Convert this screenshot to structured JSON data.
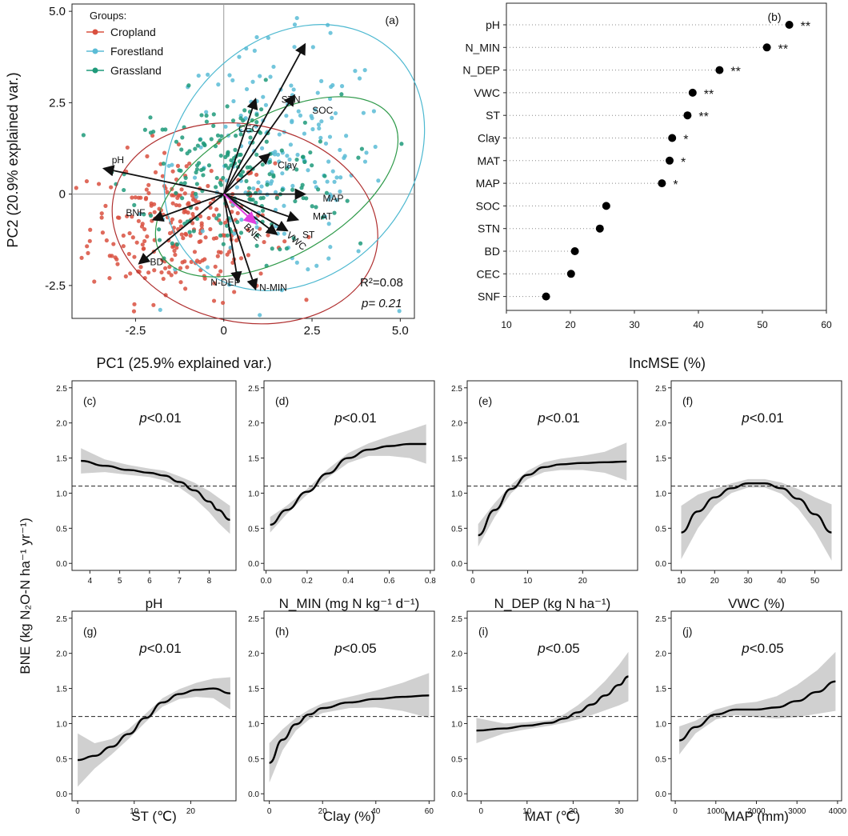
{
  "chart_data": [
    {
      "panel_label": "(a)",
      "type": "scatter",
      "xlabel": "PC1 (25.9% explained var.)",
      "ylabel": "PC2 (20.9% explained var.)",
      "xlim": [
        -4.3,
        5.4
      ],
      "ylim": [
        -3.4,
        5.2
      ],
      "xticks": [
        -2.5,
        0,
        2.5,
        5.0
      ],
      "xtick_labels": [
        "-2.5",
        "0",
        "2.5",
        "5.0"
      ],
      "yticks": [
        -2.5,
        0,
        2.5,
        5.0
      ],
      "ytick_labels": [
        "-2.5",
        "0",
        "2.5",
        "5.0"
      ],
      "legend": {
        "title": "Groups:",
        "position": "top-left",
        "items": [
          {
            "name": "Cropland",
            "color": "#d9503f"
          },
          {
            "name": "Forestland",
            "color": "#5bbcd6"
          },
          {
            "name": "Grassland",
            "color": "#1e9a7a"
          }
        ]
      },
      "series_clouds": [
        {
          "name": "Cropland",
          "color": "#d9503f",
          "center": [
            -1.2,
            -0.9
          ],
          "spread": [
            1.3,
            1.0
          ],
          "count": 260
        },
        {
          "name": "Forestland",
          "color": "#5bbcd6",
          "center": [
            1.6,
            0.9
          ],
          "spread": [
            1.5,
            1.6
          ],
          "count": 190
        },
        {
          "name": "Grassland",
          "color": "#1e9a7a",
          "center": [
            0.3,
            0.5
          ],
          "spread": [
            1.5,
            1.1
          ],
          "count": 200
        }
      ],
      "ellipses": [
        {
          "name": "Cropland",
          "color": "#b03030",
          "cx": 0.6,
          "cy": -0.8,
          "rx": 3.8,
          "ry": 2.7,
          "angle": 12
        },
        {
          "name": "Forestland",
          "color": "#4cb8d0",
          "cx": 2.0,
          "cy": 1.0,
          "rx": 4.1,
          "ry": 3.2,
          "angle": -48
        },
        {
          "name": "Grassland",
          "color": "#2f9a4a",
          "cx": 1.5,
          "cy": 0.2,
          "rx": 3.8,
          "ry": 1.9,
          "angle": -30
        }
      ],
      "loadings": [
        {
          "name": "STN",
          "x": 2.3,
          "y": 4.1,
          "lx": 1.9,
          "ly": 2.5
        },
        {
          "name": "SOC",
          "x": 2.0,
          "y": 2.7,
          "lx": 2.8,
          "ly": 2.2
        },
        {
          "name": "CEC",
          "x": 0.9,
          "y": 2.6,
          "lx": 0.7,
          "ly": 1.7
        },
        {
          "name": "Clay",
          "x": 1.3,
          "y": 1.1,
          "lx": 1.8,
          "ly": 0.7
        },
        {
          "name": "pH",
          "x": -3.4,
          "y": 0.7,
          "lx": -3.0,
          "ly": 0.85
        },
        {
          "name": "BNF",
          "x": -2.0,
          "y": -0.7,
          "lx": -2.5,
          "ly": -0.6
        },
        {
          "name": "BD",
          "x": -2.4,
          "y": -1.9,
          "lx": -1.9,
          "ly": -1.95
        },
        {
          "name": "N-DEP",
          "x": 0.4,
          "y": -2.4,
          "lx": 0.05,
          "ly": -2.5
        },
        {
          "name": "N-MIN",
          "x": 0.9,
          "y": -2.6,
          "lx": 1.4,
          "ly": -2.65
        },
        {
          "name": "MAP",
          "x": 2.3,
          "y": 0.0,
          "lx": 3.1,
          "ly": -0.2
        },
        {
          "name": "MAT",
          "x": 2.1,
          "y": -0.7,
          "lx": 2.8,
          "ly": -0.7
        },
        {
          "name": "ST",
          "x": 1.8,
          "y": -1.0,
          "lx": 2.4,
          "ly": -1.2
        },
        {
          "name": "VWC",
          "x": 1.5,
          "y": -1.1,
          "lx": 2.0,
          "ly": -1.35,
          "rotate": 40
        },
        {
          "name": "BNE",
          "x": 0.9,
          "y": -0.8,
          "lx": 0.75,
          "ly": -1.1,
          "rotate": 45
        }
      ],
      "bne_arrow_color": "#e040e0",
      "stats": {
        "r2": "R²=0.08",
        "p": "p= 0.21"
      }
    },
    {
      "panel_label": "(b)",
      "type": "scatter",
      "xlabel": "IncMSE (%)",
      "xlim": [
        10,
        60
      ],
      "xticks": [
        10,
        20,
        30,
        40,
        50,
        60
      ],
      "categories": [
        "pH",
        "N_MIN",
        "N_DEP",
        "VWC",
        "ST",
        "Clay",
        "MAT",
        "MAP",
        "SOC",
        "STN",
        "BD",
        "CEC",
        "SNF"
      ],
      "values": [
        54.2,
        50.7,
        43.3,
        39.1,
        38.3,
        35.9,
        35.5,
        34.3,
        25.6,
        24.6,
        20.7,
        20.1,
        16.2
      ],
      "significance": [
        "**",
        "**",
        "**",
        "**",
        "**",
        "*",
        "*",
        "*",
        "",
        "",
        "",
        "",
        ""
      ]
    },
    {
      "type": "line",
      "ylabel": "BNE (kg N₂O-N ha⁻¹ yr⁻¹)",
      "ylim": [
        -0.1,
        2.6
      ],
      "yticks": [
        0.0,
        0.5,
        1.0,
        1.5,
        2.0,
        2.5
      ],
      "ytick_labels": [
        "0.0",
        "0.5",
        "1.0",
        "1.5",
        "2.0",
        "2.5"
      ],
      "reference_line": 1.1,
      "panels": [
        {
          "label": "(c)",
          "p_text": "<0.01",
          "xlabel": "pH",
          "xlim": [
            3.4,
            8.9
          ],
          "xticks": [
            4,
            5,
            6,
            7,
            8
          ],
          "x": [
            3.7,
            4.5,
            5.3,
            6.0,
            6.5,
            7.0,
            7.5,
            8.0,
            8.3,
            8.7
          ],
          "y": [
            1.46,
            1.39,
            1.33,
            1.29,
            1.25,
            1.16,
            1.04,
            0.88,
            0.76,
            0.62
          ],
          "lower": [
            1.28,
            1.3,
            1.26,
            1.23,
            1.18,
            1.08,
            0.93,
            0.73,
            0.58,
            0.42
          ],
          "upper": [
            1.64,
            1.48,
            1.4,
            1.35,
            1.32,
            1.24,
            1.15,
            1.03,
            0.94,
            0.82
          ]
        },
        {
          "label": "(d)",
          "p_text": "<0.01",
          "xlabel": "N_MIN (mg  N kg⁻¹ d⁻¹)",
          "xlim": [
            -0.01,
            0.82
          ],
          "xticks": [
            0.0,
            0.2,
            0.4,
            0.6,
            0.8
          ],
          "xtick_labels": [
            "0.0",
            "0.2",
            "0.4",
            "0.6",
            "0.8"
          ],
          "x": [
            0.02,
            0.1,
            0.2,
            0.3,
            0.4,
            0.5,
            0.6,
            0.7,
            0.78
          ],
          "y": [
            0.55,
            0.76,
            1.02,
            1.28,
            1.5,
            1.62,
            1.67,
            1.7,
            1.7
          ],
          "lower": [
            0.44,
            0.7,
            0.98,
            1.22,
            1.43,
            1.53,
            1.53,
            1.5,
            1.42
          ],
          "upper": [
            0.66,
            0.82,
            1.06,
            1.34,
            1.57,
            1.71,
            1.81,
            1.9,
            1.98
          ]
        },
        {
          "label": "(e)",
          "p_text": "<0.01",
          "xlabel": "N_DEP (kg N ha⁻¹)",
          "xlim": [
            -1,
            30
          ],
          "xticks": [
            0,
            10,
            20
          ],
          "x": [
            1,
            4,
            7,
            10,
            13,
            16,
            20,
            24,
            28
          ],
          "y": [
            0.4,
            0.76,
            1.06,
            1.26,
            1.37,
            1.41,
            1.43,
            1.44,
            1.45
          ],
          "lower": [
            0.24,
            0.66,
            1.0,
            1.2,
            1.3,
            1.33,
            1.33,
            1.29,
            1.18
          ],
          "upper": [
            0.56,
            0.86,
            1.12,
            1.32,
            1.44,
            1.49,
            1.53,
            1.59,
            1.72
          ]
        },
        {
          "label": "(f)",
          "p_text": "<0.01",
          "xlabel": "VWC (%)",
          "xlim": [
            7,
            58
          ],
          "xticks": [
            10,
            20,
            30,
            40,
            50
          ],
          "x": [
            10,
            15,
            20,
            25,
            30,
            35,
            40,
            45,
            50,
            55
          ],
          "y": [
            0.44,
            0.74,
            0.94,
            1.07,
            1.14,
            1.14,
            1.07,
            0.92,
            0.7,
            0.44
          ],
          "lower": [
            0.06,
            0.5,
            0.82,
            1.0,
            1.08,
            1.08,
            0.99,
            0.78,
            0.46,
            0.04
          ],
          "upper": [
            0.82,
            0.98,
            1.06,
            1.14,
            1.2,
            1.2,
            1.15,
            1.06,
            0.94,
            0.84
          ]
        },
        {
          "label": "(g)",
          "p_text": "<0.01",
          "xlabel": "ST (℃)",
          "xlim": [
            -1,
            28
          ],
          "xticks": [
            0,
            10,
            20
          ],
          "x": [
            0,
            3,
            6,
            9,
            12,
            15,
            18,
            21,
            24,
            27
          ],
          "y": [
            0.48,
            0.54,
            0.67,
            0.85,
            1.08,
            1.3,
            1.42,
            1.48,
            1.5,
            1.43
          ],
          "lower": [
            0.1,
            0.36,
            0.56,
            0.78,
            1.02,
            1.24,
            1.35,
            1.38,
            1.36,
            1.2
          ],
          "upper": [
            0.86,
            0.72,
            0.78,
            0.92,
            1.14,
            1.36,
            1.49,
            1.58,
            1.64,
            1.66
          ]
        },
        {
          "label": "(h)",
          "p_text": "<0.05",
          "xlabel": "Clay (%)",
          "xlim": [
            -2,
            62
          ],
          "xticks": [
            0,
            20,
            40,
            60
          ],
          "x": [
            0,
            5,
            10,
            15,
            20,
            30,
            40,
            50,
            60
          ],
          "y": [
            0.44,
            0.77,
            0.99,
            1.13,
            1.22,
            1.3,
            1.35,
            1.38,
            1.4
          ],
          "lower": [
            0.16,
            0.62,
            0.9,
            1.06,
            1.15,
            1.22,
            1.23,
            1.18,
            1.08
          ],
          "upper": [
            0.72,
            0.92,
            1.08,
            1.2,
            1.29,
            1.38,
            1.47,
            1.58,
            1.72
          ]
        },
        {
          "label": "(i)",
          "p_text": "<0.05",
          "xlabel": "MAT (℃)",
          "xlim": [
            -3,
            34
          ],
          "xticks": [
            0,
            10,
            20,
            30
          ],
          "x": [
            -1,
            5,
            10,
            15,
            18,
            21,
            24,
            27,
            30,
            32
          ],
          "y": [
            0.9,
            0.93,
            0.97,
            1.01,
            1.07,
            1.16,
            1.27,
            1.4,
            1.55,
            1.67
          ],
          "lower": [
            0.72,
            0.86,
            0.92,
            0.97,
            1.01,
            1.06,
            1.12,
            1.19,
            1.26,
            1.32
          ],
          "upper": [
            1.08,
            1.0,
            1.02,
            1.05,
            1.13,
            1.26,
            1.42,
            1.61,
            1.84,
            2.02
          ]
        },
        {
          "label": "(j)",
          "p_text": "<0.05",
          "xlabel": "MAP (mm)",
          "xlim": [
            -100,
            4100
          ],
          "xticks": [
            0,
            1000,
            2000,
            3000,
            4000
          ],
          "x": [
            100,
            500,
            1000,
            1500,
            2000,
            2500,
            3000,
            3500,
            3950
          ],
          "y": [
            0.76,
            0.95,
            1.13,
            1.2,
            1.2,
            1.23,
            1.32,
            1.45,
            1.6
          ],
          "lower": [
            0.56,
            0.86,
            1.06,
            1.12,
            1.09,
            1.07,
            1.09,
            1.14,
            1.18
          ],
          "upper": [
            0.96,
            1.04,
            1.2,
            1.28,
            1.31,
            1.39,
            1.55,
            1.76,
            2.02
          ]
        }
      ]
    }
  ]
}
